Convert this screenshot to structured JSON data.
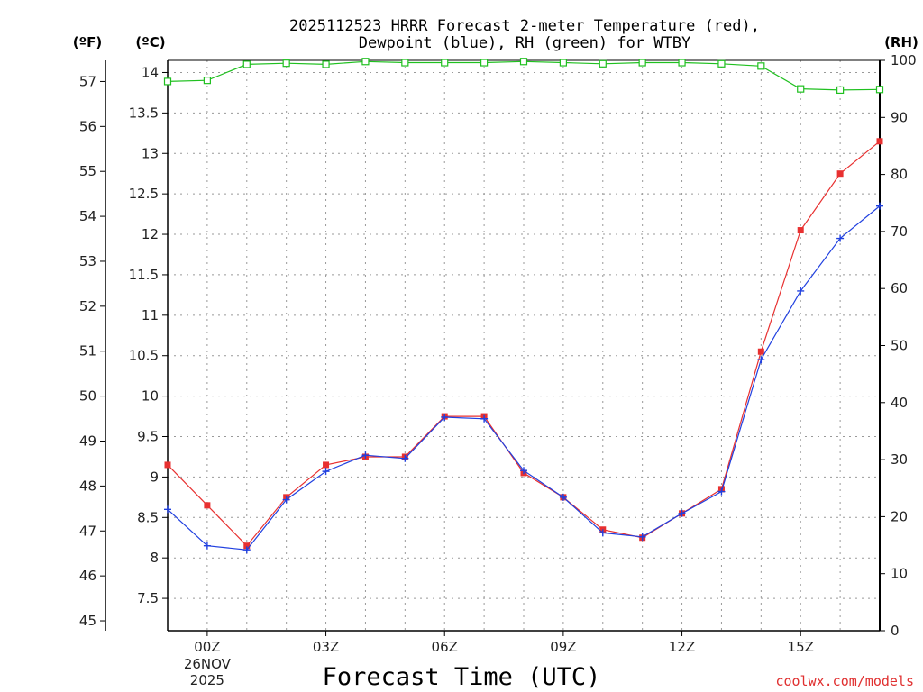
{
  "chart_data": {
    "type": "line",
    "title_line1": "2025112523 HRRR Forecast 2-meter Temperature (red),",
    "title_line2": "Dewpoint (blue), RH (green) for WTBY",
    "xlabel": "Forecast Time (UTC)",
    "credit": "coolwx.com/models",
    "axis_units": {
      "fahrenheit": "(ºF)",
      "celsius": "(ºC)",
      "rh": "(RH)"
    },
    "x_range": [
      -1,
      17
    ],
    "celsius_range": [
      7.1,
      14.15
    ],
    "rh_range": [
      0,
      100
    ],
    "x_ticks": [
      {
        "x": 0,
        "label": "00Z",
        "sub1": "26NOV",
        "sub2": "2025"
      },
      {
        "x": 3,
        "label": "03Z"
      },
      {
        "x": 6,
        "label": "06Z"
      },
      {
        "x": 9,
        "label": "09Z"
      },
      {
        "x": 12,
        "label": "12Z"
      },
      {
        "x": 15,
        "label": "15Z"
      }
    ],
    "celsius_ticks": [
      "7.5",
      "8",
      "8.5",
      "9",
      "9.5",
      "10",
      "10.5",
      "11",
      "11.5",
      "12",
      "12.5",
      "13",
      "13.5",
      "14"
    ],
    "fahrenheit_ticks": [
      "45",
      "46",
      "47",
      "48",
      "49",
      "50",
      "51",
      "52",
      "53",
      "54",
      "55",
      "56",
      "57"
    ],
    "rh_ticks": [
      "0",
      "10",
      "20",
      "30",
      "40",
      "50",
      "60",
      "70",
      "80",
      "90",
      "100"
    ],
    "x": [
      -1,
      0,
      1,
      2,
      3,
      4,
      5,
      6,
      7,
      8,
      9,
      10,
      11,
      12,
      13,
      14,
      15,
      16,
      17
    ],
    "series": [
      {
        "name": "Temperature",
        "color": "#e83030",
        "marker": "filled-square",
        "axis": "celsius",
        "values": [
          9.15,
          8.65,
          8.15,
          8.75,
          9.15,
          9.25,
          9.25,
          9.75,
          9.75,
          9.05,
          8.75,
          8.35,
          8.25,
          8.55,
          8.85,
          10.55,
          12.05,
          12.75,
          13.15
        ]
      },
      {
        "name": "Dewpoint",
        "color": "#2040e0",
        "marker": "plus",
        "axis": "celsius",
        "values": [
          8.6,
          8.15,
          8.1,
          8.72,
          9.07,
          9.27,
          9.23,
          9.74,
          9.72,
          9.08,
          8.75,
          8.31,
          8.26,
          8.55,
          8.82,
          10.45,
          11.3,
          11.95,
          12.35
        ]
      },
      {
        "name": "RH",
        "color": "#20c020",
        "marker": "open-square",
        "axis": "rh",
        "values": [
          96.3,
          96.5,
          99.3,
          99.5,
          99.3,
          99.8,
          99.6,
          99.6,
          99.6,
          99.8,
          99.6,
          99.4,
          99.6,
          99.6,
          99.4,
          99.0,
          95.0,
          94.8,
          94.9
        ]
      }
    ]
  }
}
